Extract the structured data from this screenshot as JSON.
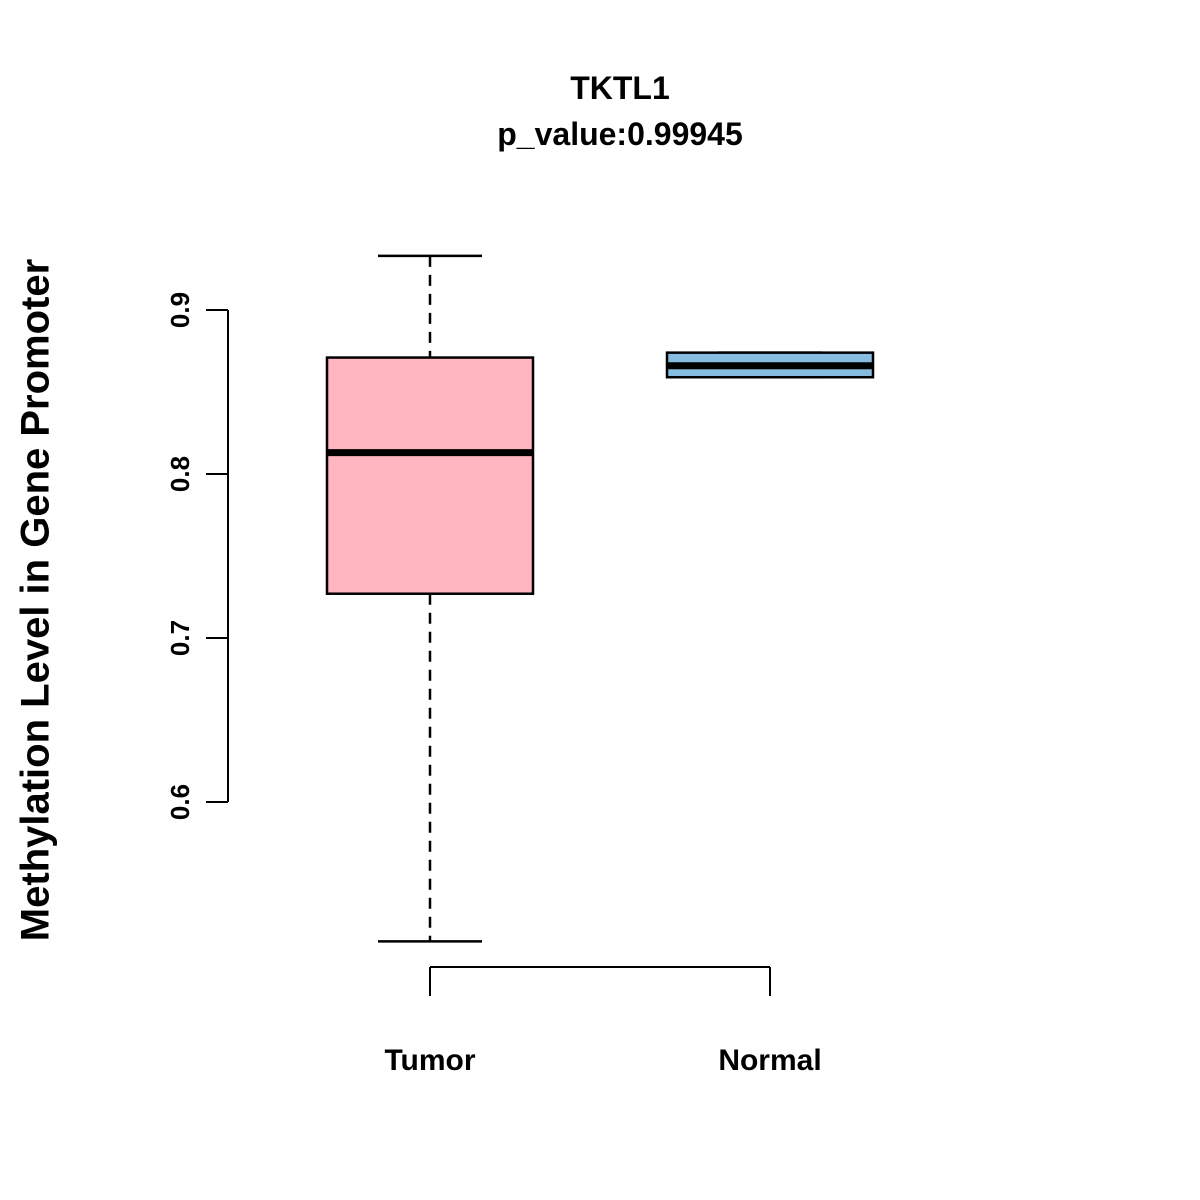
{
  "title": "TKTL1",
  "subtitle": "p_value:0.99945",
  "ylabel": "Methylation Level in Gene Promoter",
  "chart_data": {
    "type": "boxplot",
    "title": "TKTL1",
    "subtitle": "p_value:0.99945",
    "ylabel": "Methylation Level in Gene Promoter",
    "xlabel": "",
    "categories": [
      "Tumor",
      "Normal"
    ],
    "series": [
      {
        "name": "Tumor",
        "min": 0.515,
        "q1": 0.727,
        "median": 0.813,
        "q3": 0.871,
        "max": 0.933,
        "color": "#FFB6C1"
      },
      {
        "name": "Normal",
        "min": 0.859,
        "q1": 0.859,
        "median": 0.866,
        "q3": 0.874,
        "max": 0.874,
        "color": "#85BCE0"
      }
    ],
    "yticks": [
      0.6,
      0.7,
      0.8,
      0.9
    ],
    "ylim": [
      0.49,
      0.95
    ],
    "grid": false,
    "legend": "none"
  },
  "colors": {
    "tumor_box": "#FFB6C1",
    "normal_box": "#85BCE0",
    "axis": "#000000",
    "background": "#FFFFFF"
  }
}
